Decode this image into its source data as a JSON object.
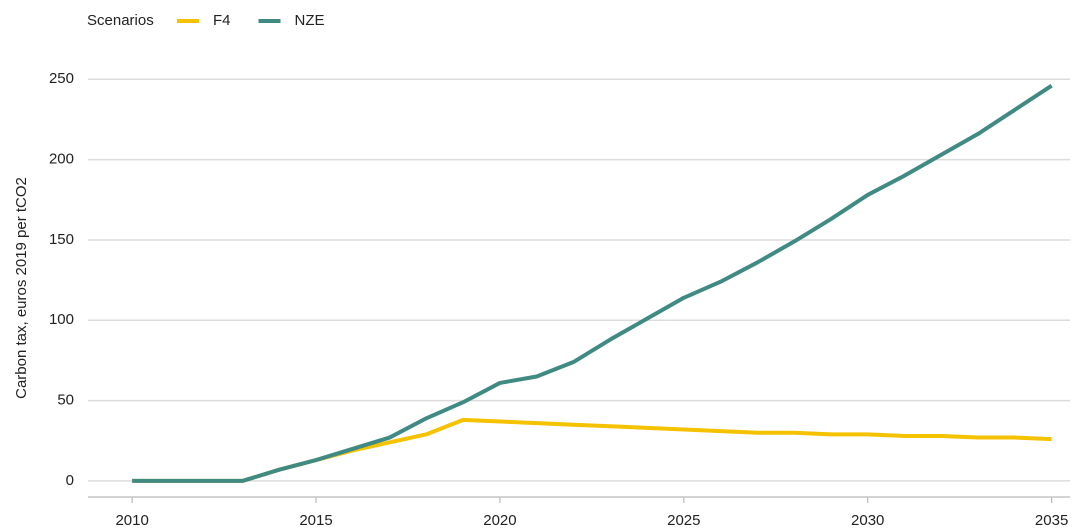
{
  "chart_data": {
    "type": "line",
    "y_label": "Carbon tax, euros 2019 per tCO2",
    "legend_title": "Scenarios",
    "legend": "top-left",
    "grid": true,
    "x": [
      2010,
      2011,
      2012,
      2013,
      2014,
      2015,
      2016,
      2017,
      2018,
      2019,
      2020,
      2021,
      2022,
      2023,
      2024,
      2025,
      2026,
      2027,
      2028,
      2029,
      2030,
      2031,
      2032,
      2033,
      2034,
      2035
    ],
    "series": [
      {
        "name": "F4",
        "color": "#f5c200",
        "values": [
          0,
          0,
          0,
          0,
          7,
          13,
          19,
          24,
          29,
          38,
          37,
          36,
          35,
          34,
          33,
          32,
          31,
          30,
          30,
          29,
          29,
          28,
          28,
          27,
          27,
          26
        ]
      },
      {
        "name": "NZE",
        "color": "#3f8a83",
        "values": [
          0,
          0,
          0,
          0,
          7,
          13,
          20,
          27,
          39,
          49,
          61,
          65,
          74,
          88,
          101,
          114,
          124,
          136,
          149,
          163,
          178,
          190,
          203,
          216,
          231,
          246
        ]
      }
    ],
    "xlim": [
      2008.8,
      2035.5
    ],
    "xticks": [
      2010,
      2015,
      2020,
      2025,
      2030,
      2035
    ],
    "ylim": [
      -10,
      262
    ],
    "yticks": [
      0,
      50,
      100,
      150,
      200,
      250
    ]
  }
}
